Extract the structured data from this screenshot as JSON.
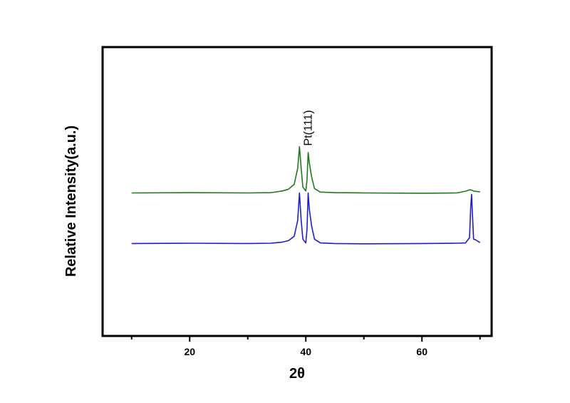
{
  "chart_data": {
    "type": "line",
    "title": "",
    "xlabel": "2θ",
    "ylabel": "Relative Intensity(a.u.)",
    "xlim": [
      5,
      72
    ],
    "ylim": [
      0,
      100
    ],
    "x_ticks": [
      20,
      40,
      60
    ],
    "y_ticks_shown": false,
    "grid": false,
    "legend": "none",
    "annotations": [
      {
        "text": "Pt(111)",
        "x": 41,
        "y": 72,
        "rotation": -90
      }
    ],
    "series": [
      {
        "color": "#1f7a1f",
        "x": [
          10,
          20,
          30,
          34,
          36,
          37,
          38,
          38.6,
          38.9,
          39.2,
          39.5,
          40.0,
          40.2,
          40.4,
          40.6,
          41.0,
          41.5,
          42.5,
          45,
          50,
          60,
          66,
          67.5,
          68.2,
          68.5,
          69,
          70
        ],
        "y": [
          49.5,
          49.6,
          49.5,
          49.6,
          50.2,
          50.8,
          52.5,
          58,
          65.5,
          58,
          51.5,
          50.2,
          54,
          63.5,
          60,
          55,
          51,
          49.8,
          49.6,
          49.5,
          49.4,
          49.5,
          50.1,
          50.6,
          50.5,
          50.1,
          49.9
        ]
      },
      {
        "color": "#1f1fc8",
        "x": [
          10,
          20,
          30,
          34,
          36,
          37,
          38,
          38.6,
          38.9,
          39.2,
          39.5,
          40.0,
          40.2,
          40.4,
          40.6,
          41.0,
          41.5,
          42.5,
          45,
          50,
          60,
          66,
          67.5,
          68.2,
          68.4,
          68.55,
          68.7,
          68.9,
          69.3,
          70
        ],
        "y": [
          32,
          32.1,
          32,
          32.1,
          32.5,
          33,
          34.5,
          40,
          49.5,
          40,
          33.5,
          32.2,
          37,
          49.5,
          44,
          38,
          33.5,
          32.2,
          32,
          31.9,
          32,
          32.1,
          32.2,
          34,
          45,
          49,
          42,
          33.5,
          33.2,
          32.3
        ]
      }
    ]
  }
}
